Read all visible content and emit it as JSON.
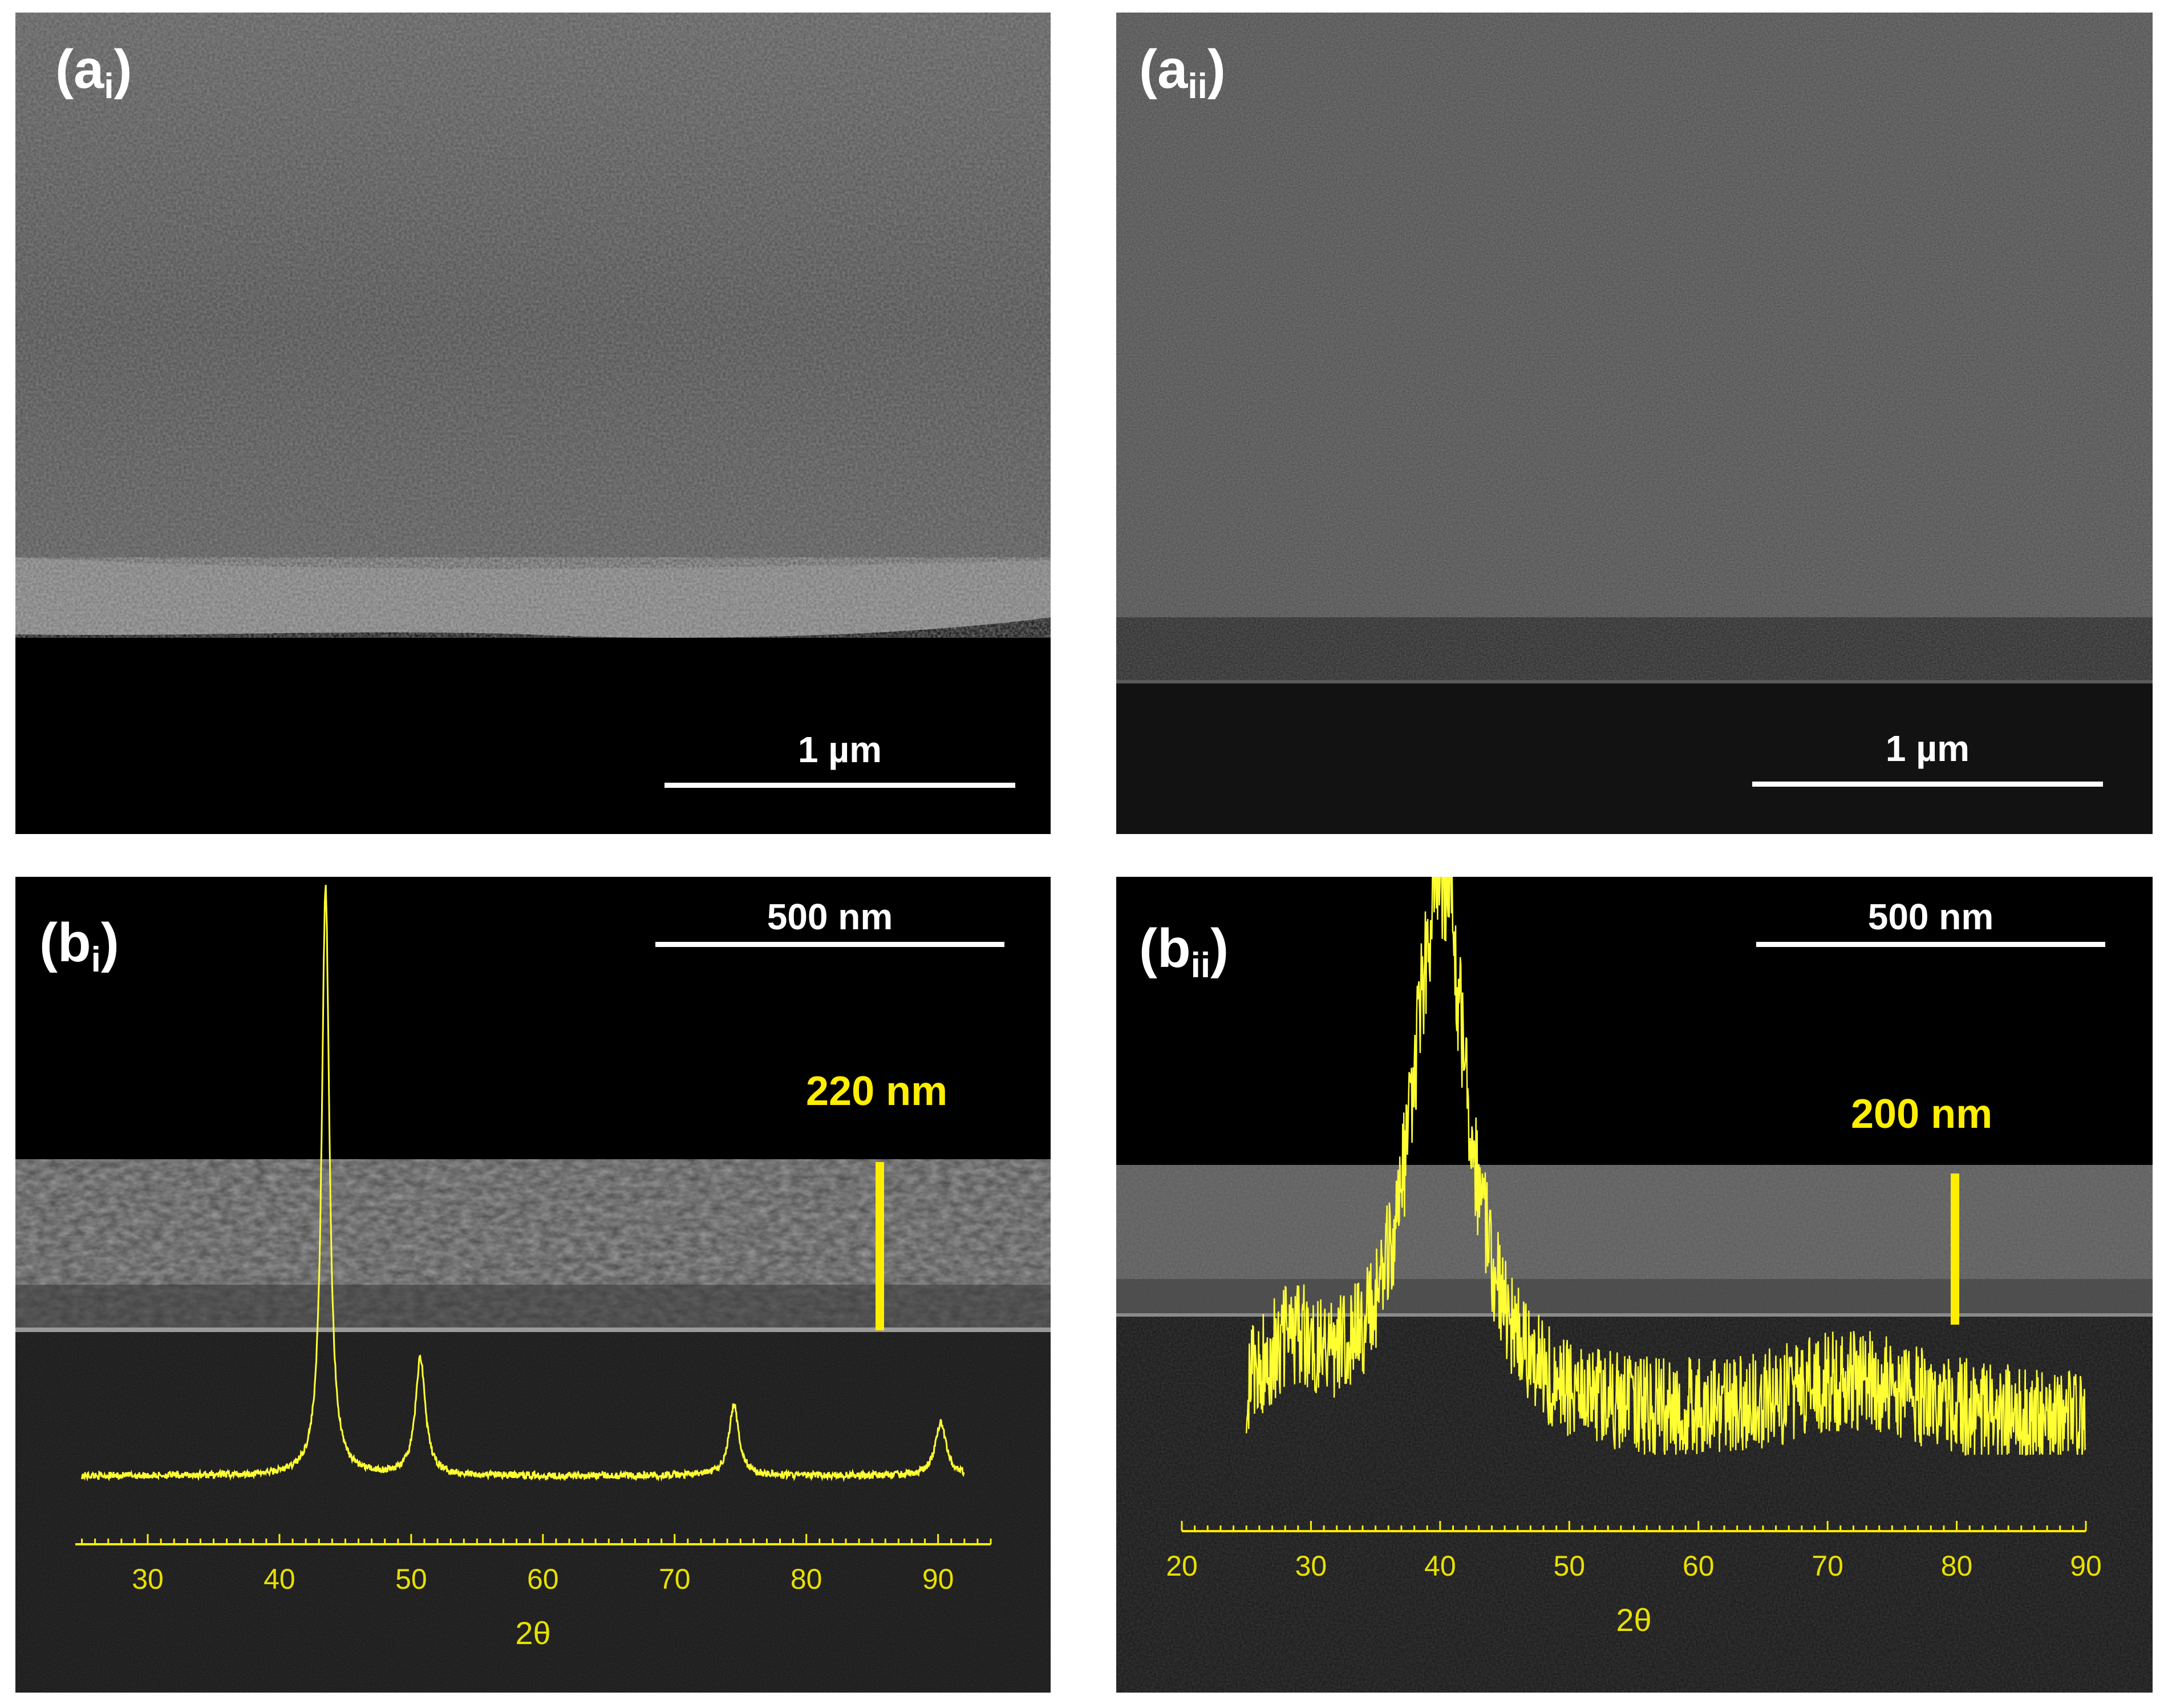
{
  "panels": {
    "ai": {
      "letter": "(a",
      "sub": "i",
      "close": ")",
      "scale_label": "1 µm"
    },
    "aii": {
      "letter": "(a",
      "sub": "ii",
      "close": ")",
      "scale_label": "1 µm"
    },
    "bi": {
      "letter": "(b",
      "sub": "i",
      "close": ")",
      "scale_label": "500 nm",
      "thickness_label": "220 nm"
    },
    "bii": {
      "letter": "(b",
      "sub": "ii",
      "close": ")",
      "scale_label": "500 nm",
      "thickness_label": "200 nm"
    }
  },
  "colors": {
    "annotation": "#ffee00",
    "xrd_trace": "#ffff33",
    "scale_bar": "#ffffff"
  },
  "chart_data": [
    {
      "type": "line",
      "panel": "bi",
      "xlabel": "2θ",
      "ylabel": "",
      "xlim": [
        24.5,
        94
      ],
      "xticks": [
        30,
        40,
        50,
        60,
        70,
        80,
        90
      ],
      "baseline_range": [
        25,
        92
      ],
      "peaks": [
        {
          "x": 43.5,
          "height": 1.0,
          "width": 0.35
        },
        {
          "x": 50.7,
          "height": 0.2,
          "width": 0.45
        },
        {
          "x": 74.5,
          "height": 0.12,
          "width": 0.45
        },
        {
          "x": 90.2,
          "height": 0.09,
          "width": 0.5
        }
      ],
      "noise": 0.006,
      "grid": false
    },
    {
      "type": "line",
      "panel": "bii",
      "xlabel": "2θ",
      "ylabel": "",
      "xlim": [
        20,
        90
      ],
      "xticks": [
        20,
        30,
        40,
        50,
        60,
        70,
        80,
        90
      ],
      "baseline_range": [
        25,
        90
      ],
      "peaks": [
        {
          "x": 40.0,
          "height": 1.0,
          "width": 2.6
        },
        {
          "x": 28.5,
          "height": 0.12,
          "width": 3.0
        },
        {
          "x": 72.0,
          "height": 0.08,
          "width": 7.0
        }
      ],
      "noise": 0.09,
      "grid": false
    }
  ]
}
